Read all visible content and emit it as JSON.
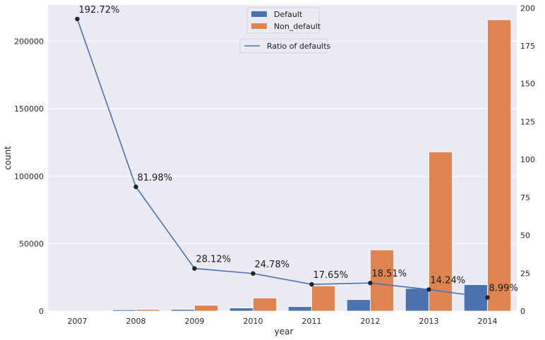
{
  "chart_data": {
    "type": "bar",
    "categories": [
      "2007",
      "2008",
      "2009",
      "2010",
      "2011",
      "2012",
      "2013",
      "2014"
    ],
    "xlabel": "year",
    "ylabel": "count",
    "ylim": [
      0,
      227000
    ],
    "yticks": [
      0,
      50000,
      100000,
      150000,
      200000
    ],
    "y2lim": [
      0,
      202
    ],
    "y2ticks": [
      0,
      25,
      50,
      75,
      100,
      125,
      150,
      175,
      200
    ],
    "series": [
      {
        "name": "Default",
        "color": "#4c72b0",
        "values": [
          130,
          1000,
          1200,
          2300,
          3300,
          8500,
          16800,
          19600
        ]
      },
      {
        "name": "Non_default",
        "color": "#dd8452",
        "values": [
          70,
          1220,
          4300,
          9700,
          18700,
          45400,
          118000,
          216000
        ]
      }
    ],
    "line": {
      "name": "Ratio of defaults",
      "color": "#4c72b0",
      "values": [
        192.72,
        81.98,
        28.12,
        24.78,
        17.65,
        18.51,
        14.24,
        8.99
      ],
      "labels": [
        "192.72%",
        "81.98%",
        "28.12%",
        "24.78%",
        "17.65%",
        "18.51%",
        "14.24%",
        "8.99%"
      ]
    },
    "grid": true,
    "legend_bars": "top-center",
    "legend_line": "upper-center"
  }
}
